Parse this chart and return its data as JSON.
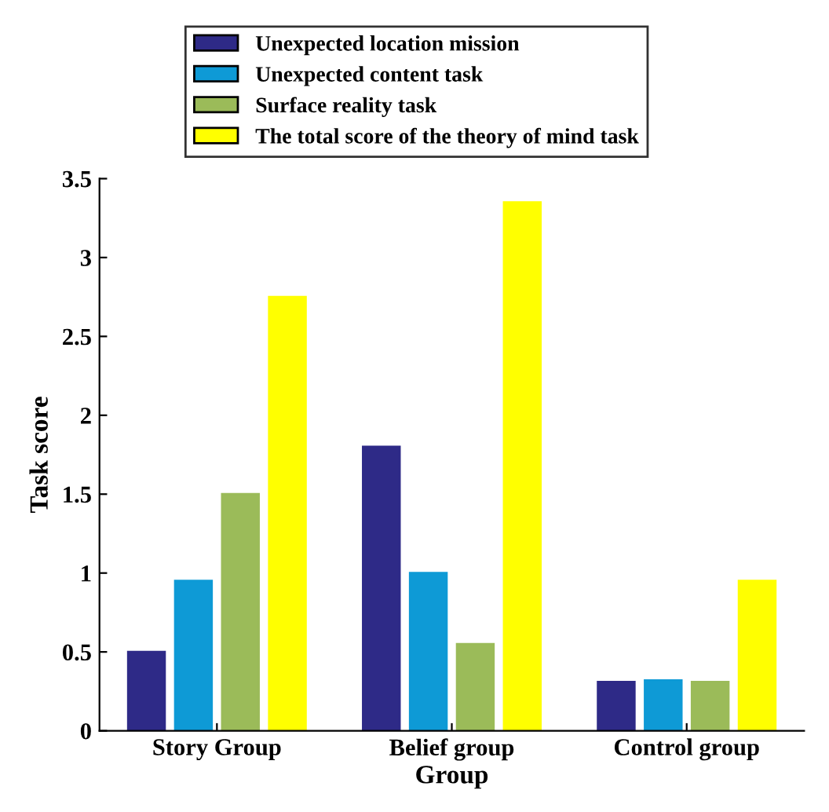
{
  "chart_data": {
    "type": "bar",
    "xlabel": "Group",
    "ylabel": "Task score",
    "categories": [
      "Story Group",
      "Belief group",
      "Control group"
    ],
    "series": [
      {
        "name": "Unexpected location mission",
        "color": "#2e2a87",
        "values": [
          0.5,
          1.8,
          0.31
        ]
      },
      {
        "name": "Unexpected content task",
        "color": "#0e9ad6",
        "values": [
          0.95,
          1.0,
          0.32
        ]
      },
      {
        "name": "Surface reality task",
        "color": "#9bbb59",
        "values": [
          1.5,
          0.55,
          0.31
        ]
      },
      {
        "name": "The total score of the theory of mind task",
        "color": "#ffff00",
        "values": [
          2.75,
          3.35,
          0.95
        ]
      }
    ],
    "ylim": [
      0,
      3.5
    ],
    "yticks": [
      0,
      0.5,
      1,
      1.5,
      2,
      2.5,
      3,
      3.5
    ],
    "grid": false,
    "legend": "top"
  }
}
